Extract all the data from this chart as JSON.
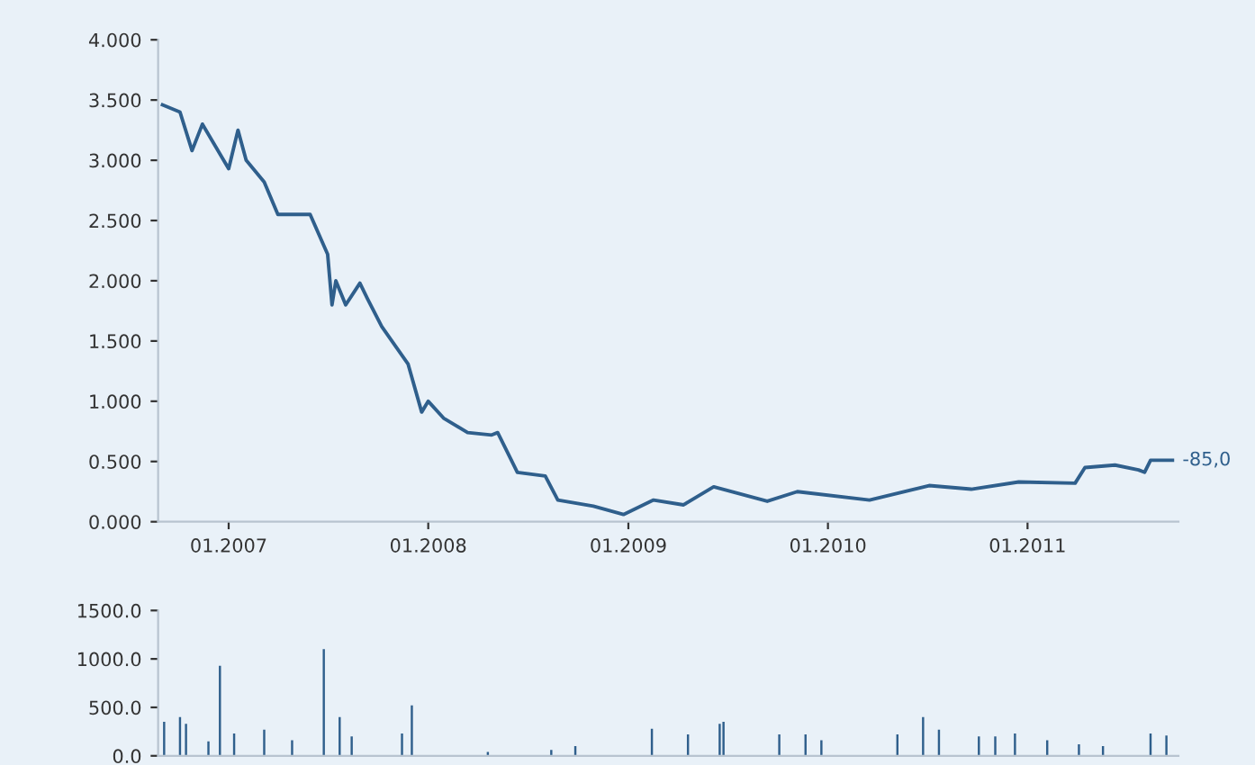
{
  "chart_data": [
    {
      "type": "line",
      "x": [
        "2006-09-02",
        "2006-10-04",
        "2006-10-26",
        "2006-11-14",
        "2007-01-01",
        "2007-01-18",
        "2007-02-02",
        "2007-03-07",
        "2007-04-01",
        "2007-05-30",
        "2007-07-01",
        "2007-07-09",
        "2007-07-16",
        "2007-08-03",
        "2007-08-29",
        "2007-09-12",
        "2007-10-08",
        "2007-11-25",
        "2007-12-20",
        "2008-01-01",
        "2008-01-29",
        "2008-03-13",
        "2008-04-26",
        "2008-05-07",
        "2008-06-12",
        "2008-08-02",
        "2008-08-25",
        "2008-10-29",
        "2008-12-23",
        "2009-02-16",
        "2009-04-12",
        "2009-06-06",
        "2009-09-12",
        "2009-11-06",
        "2010-03-18",
        "2010-07-05",
        "2010-09-20",
        "2010-12-16",
        "2011-03-29",
        "2011-04-16",
        "2011-06-10",
        "2011-07-23",
        "2011-08-03",
        "2011-08-14",
        "2011-09-23"
      ],
      "series": [
        {
          "color": "#2f5f8c",
          "values": [
            3.46,
            3.4,
            3.08,
            3.3,
            2.93,
            3.25,
            3.0,
            2.82,
            2.55,
            2.55,
            2.22,
            1.8,
            2.0,
            1.8,
            1.98,
            1.85,
            1.62,
            1.31,
            0.91,
            1.0,
            0.86,
            0.74,
            0.72,
            0.74,
            0.41,
            0.38,
            0.18,
            0.13,
            0.06,
            0.18,
            0.14,
            0.29,
            0.17,
            0.25,
            0.18,
            0.3,
            0.27,
            0.33,
            0.32,
            0.45,
            0.47,
            0.43,
            0.41,
            0.51,
            0.51
          ]
        }
      ],
      "xlim": [
        "2006-08-25",
        "2011-10-04"
      ],
      "xticks": [
        {
          "value": "2007-01-01",
          "label": "01.2007"
        },
        {
          "value": "2008-01-01",
          "label": "01.2008"
        },
        {
          "value": "2009-01-01",
          "label": "01.2009"
        },
        {
          "value": "2010-01-01",
          "label": "01.2010"
        },
        {
          "value": "2011-01-01",
          "label": "01.2011"
        }
      ],
      "ylim": [
        0,
        4
      ],
      "yticks": [
        {
          "value": 0,
          "label": "0.000"
        },
        {
          "value": 0.5,
          "label": "0.500"
        },
        {
          "value": 1,
          "label": "1.000"
        },
        {
          "value": 1.5,
          "label": "1.500"
        },
        {
          "value": 2,
          "label": "2.000"
        },
        {
          "value": 2.5,
          "label": "2.500"
        },
        {
          "value": 3,
          "label": "3.000"
        },
        {
          "value": 3.5,
          "label": "3.500"
        },
        {
          "value": 4,
          "label": "4.000"
        }
      ],
      "annotations": [
        {
          "text": "-85,0",
          "x": "2011-09-23",
          "y": 0.51
        }
      ]
    },
    {
      "type": "bar",
      "x": [
        "2006-09-05",
        "2006-10-04",
        "2006-10-15",
        "2006-11-25",
        "2006-12-16",
        "2007-01-11",
        "2007-03-07",
        "2007-04-27",
        "2007-06-24",
        "2007-07-23",
        "2007-08-14",
        "2007-11-14",
        "2007-12-02",
        "2008-04-19",
        "2008-08-13",
        "2008-09-26",
        "2009-02-13",
        "2009-04-20",
        "2009-06-17",
        "2009-06-24",
        "2009-10-04",
        "2009-11-21",
        "2009-12-20",
        "2010-05-08",
        "2010-06-24",
        "2010-07-23",
        "2010-10-04",
        "2010-11-03",
        "2010-12-09",
        "2011-02-06",
        "2011-04-05",
        "2011-05-19",
        "2011-08-14",
        "2011-09-12"
      ],
      "series": [
        {
          "color": "#2f5f8c",
          "values": [
            350,
            400,
            330,
            150,
            930,
            230,
            270,
            160,
            1100,
            400,
            200,
            230,
            520,
            40,
            60,
            100,
            280,
            220,
            330,
            350,
            220,
            220,
            160,
            220,
            400,
            270,
            200,
            200,
            230,
            160,
            120,
            100,
            230,
            210
          ]
        }
      ],
      "xlim": [
        "2006-08-25",
        "2011-10-04"
      ],
      "ylim": [
        0,
        1500
      ],
      "yticks": [
        {
          "value": 0,
          "label": "0.0"
        },
        {
          "value": 500,
          "label": "500.0"
        },
        {
          "value": 1000,
          "label": "1000.0"
        },
        {
          "value": 1500,
          "label": "1500.0"
        }
      ],
      "tick_labels": "y"
    }
  ]
}
